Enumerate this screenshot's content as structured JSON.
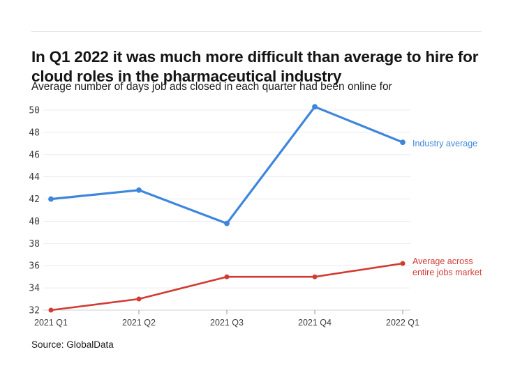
{
  "header": {
    "title": "In Q1 2022 it was much more difficult than average to hire for cloud roles in the pharmaceutical industry",
    "subtitle": "Average number of days job ads closed in each quarter had been online for"
  },
  "chart_data": {
    "type": "line",
    "title": "In Q1 2022 it was much more difficult than average to hire for cloud roles in the pharmaceutical industry",
    "subtitle": "Average number of days job ads closed in each quarter had been online for",
    "categories": [
      "2021 Q1",
      "2021 Q2",
      "2021 Q3",
      "2021 Q4",
      "2022 Q1"
    ],
    "series": [
      {
        "name": "Industry average",
        "color": "#3e86dc",
        "values": [
          42.0,
          42.8,
          39.8,
          50.3,
          47.1
        ]
      },
      {
        "name": "Average across entire jobs market",
        "color": "#d23b33",
        "values": [
          32.0,
          33.0,
          35.0,
          35.0,
          36.2
        ]
      }
    ],
    "xlabel": "",
    "ylabel": "",
    "ylim": [
      32,
      50
    ],
    "yticks": [
      32,
      34,
      36,
      38,
      40,
      42,
      44,
      46,
      48,
      50
    ],
    "grid": true,
    "legend_position": "right-of-line-end"
  },
  "legend": {
    "industry_label": "Industry average",
    "market_label_line1": "Average across",
    "market_label_line2": "entire jobs market"
  },
  "footer": {
    "source": "Source: GlobalData"
  },
  "colors": {
    "industry_line": "#3e86dc",
    "market_line": "#d23b33",
    "gridline": "#ebebeb",
    "axis_line": "#d0d0d0",
    "tick_mark": "#999999",
    "tick_label": "#3d3d3d"
  }
}
